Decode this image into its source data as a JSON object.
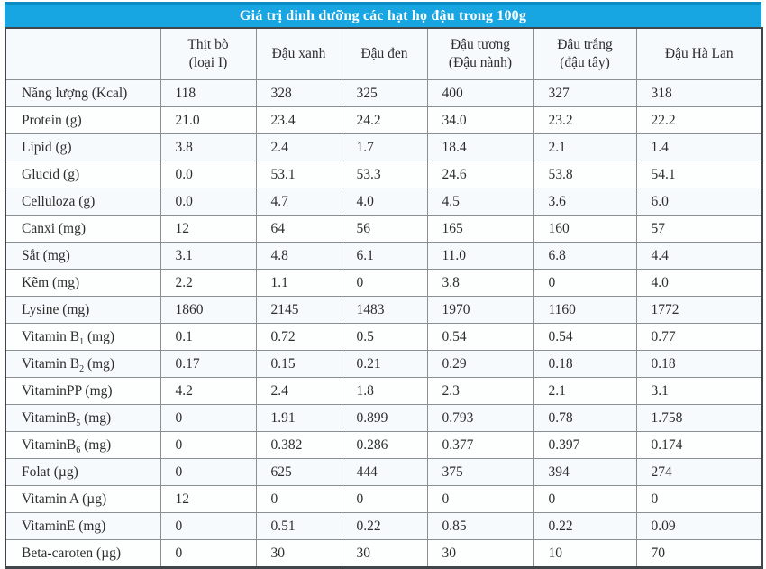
{
  "page_title": "Giá trị dinh dưỡng các hạt họ đậu trong 100g",
  "colors": {
    "title_bar": "#18a6e3",
    "title_bar_top_edge": "#0d8cc4",
    "title_text": "#ffffff",
    "outer_border": "#41464a",
    "inner_border": "#8a9094",
    "header_background": "#f6fafd",
    "row_tint": "#f7fafc",
    "text": "#2d2d2d"
  },
  "table": {
    "corner_label": "",
    "columns": [
      {
        "label": "Thịt bò",
        "sublabel": "(loại I)"
      },
      {
        "label": "Đậu xanh",
        "sublabel": ""
      },
      {
        "label": "Đậu đen",
        "sublabel": ""
      },
      {
        "label": "Đậu tương",
        "sublabel": "(Đậu nành)"
      },
      {
        "label": "Đậu trắng",
        "sublabel": "(đậu tây)"
      },
      {
        "label": "Đậu Hà Lan",
        "sublabel": ""
      }
    ],
    "rows": [
      {
        "label": "Năng lượng (Kcal)",
        "values": [
          "118",
          "328",
          "325",
          "400",
          "327",
          "318"
        ]
      },
      {
        "label": "Protein (g)",
        "values": [
          "21.0",
          "23.4",
          "24.2",
          "34.0",
          "23.2",
          "22.2"
        ]
      },
      {
        "label": "Lipid (g)",
        "values": [
          "3.8",
          "2.4",
          "1.7",
          "18.4",
          "2.1",
          "1.4"
        ]
      },
      {
        "label": "Glucid (g)",
        "values": [
          "0.0",
          "53.1",
          "53.3",
          "24.6",
          "53.8",
          "54.1"
        ]
      },
      {
        "label": "Celluloza (g)",
        "values": [
          "0.0",
          "4.7",
          "4.0",
          "4.5",
          "3.6",
          "6.0"
        ]
      },
      {
        "label": "Canxi (mg)",
        "values": [
          "12",
          "64",
          "56",
          "165",
          "160",
          "57"
        ]
      },
      {
        "label": "Sắt (mg)",
        "values": [
          "3.1",
          "4.8",
          "6.1",
          "11.0",
          "6.8",
          "4.4"
        ]
      },
      {
        "label": "Kẽm (mg)",
        "values": [
          "2.2",
          "1.1",
          "0",
          "3.8",
          "0",
          "4.0"
        ]
      },
      {
        "label": "Lysine (mg)",
        "values": [
          "1860",
          "2145",
          "1483",
          "1970",
          "1160",
          "1772"
        ]
      },
      {
        "label": "Vitamin B~1~ (mg)",
        "values": [
          "0.1",
          "0.72",
          "0.5",
          "0.54",
          "0.54",
          "0.77"
        ]
      },
      {
        "label": "Vitamin B~2~ (mg)",
        "values": [
          "0.17",
          "0.15",
          "0.21",
          "0.29",
          "0.18",
          "0.18"
        ]
      },
      {
        "label": "VitaminPP (mg)",
        "values": [
          "4.2",
          "2.4",
          "1.8",
          "2.3",
          "2.1",
          "3.1"
        ]
      },
      {
        "label": "VitaminB~5~ (mg)",
        "values": [
          "0",
          "1.91",
          "0.899",
          "0.793",
          "0.78",
          "1.758"
        ]
      },
      {
        "label": "VitaminB~6~ (mg)",
        "values": [
          "0",
          "0.382",
          "0.286",
          "0.377",
          "0.397",
          "0.174"
        ]
      },
      {
        "label": "Folat (µg)",
        "values": [
          "0",
          "625",
          "444",
          "375",
          "394",
          "274"
        ]
      },
      {
        "label": "Vitamin A (µg)",
        "values": [
          "12",
          "0",
          "0",
          "0",
          "0",
          "0"
        ]
      },
      {
        "label": "VitaminE (mg)",
        "values": [
          "0",
          "0.51",
          "0.22",
          "0.85",
          "0.22",
          "0.09"
        ]
      },
      {
        "label": "Beta-caroten (µg)",
        "values": [
          "0",
          "30",
          "30",
          "30",
          "10",
          "70"
        ]
      }
    ]
  }
}
